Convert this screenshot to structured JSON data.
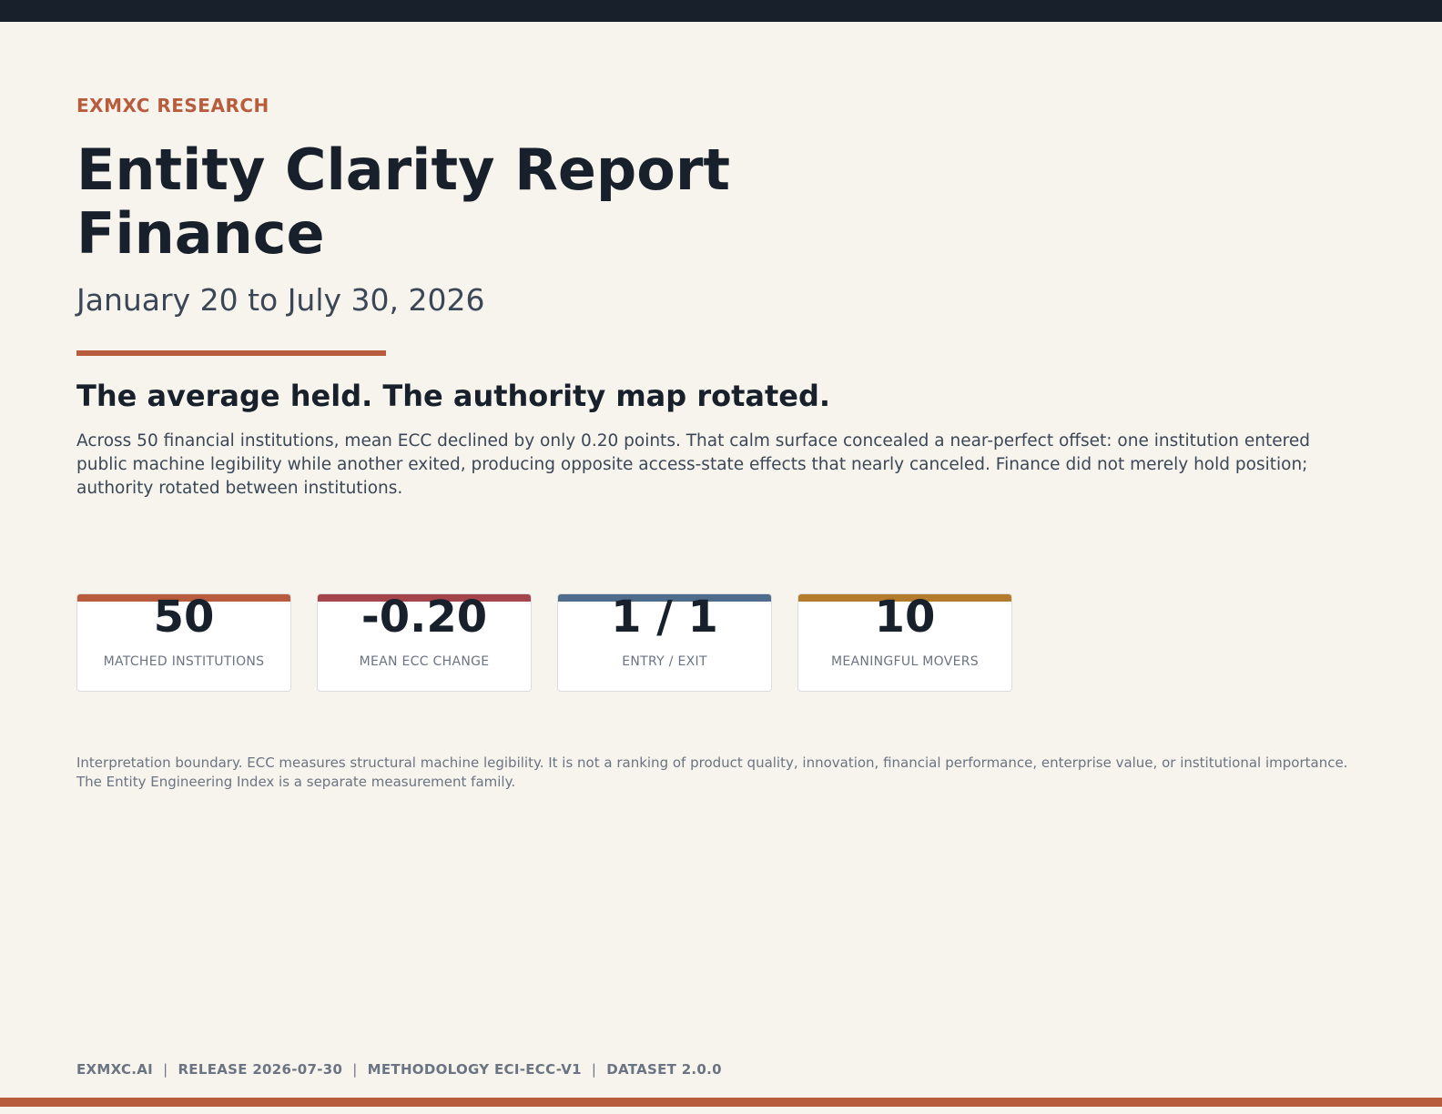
{
  "header": {
    "eyebrow": "EXMXC RESEARCH",
    "title_line1": "Entity Clarity Report",
    "title_line2": "Finance",
    "date_range": "January 20 to July 30, 2026"
  },
  "headline": "The average held. The authority map rotated.",
  "summary": "Across 50 financial institutions, mean ECC declined by only 0.20 points. That calm surface concealed a near-perfect offset: one institution entered public machine legibility while another exited, producing opposite access-state effects that nearly canceled. Finance did not merely hold position; authority rotated between institutions.",
  "kpis": [
    {
      "value": "50",
      "label": "MATCHED INSTITUTIONS",
      "accent": "#b85c3e"
    },
    {
      "value": "-0.20",
      "label": "MEAN ECC CHANGE",
      "accent": "#a3454a"
    },
    {
      "value": "1 / 1",
      "label": "ENTRY / EXIT",
      "accent": "#4e6d8c"
    },
    {
      "value": "10",
      "label": "MEANINGFUL MOVERS",
      "accent": "#b57b2c"
    }
  ],
  "boundary_note": "Interpretation boundary. ECC measures structural machine legibility. It is not a ranking of product quality, innovation, financial performance, enterprise value, or institutional importance. The Entity Engineering Index is a separate measurement family.",
  "footer": {
    "items": [
      "EXMXC.AI",
      "RELEASE 2026-07-30",
      "METHODOLOGY ECI-ECC-V1",
      "DATASET 2.0.0"
    ],
    "separator": "|"
  },
  "colors": {
    "background": "#f7f4ee",
    "ink": "#18212b",
    "accent": "#b85c3e",
    "muted": "#6b7482"
  }
}
